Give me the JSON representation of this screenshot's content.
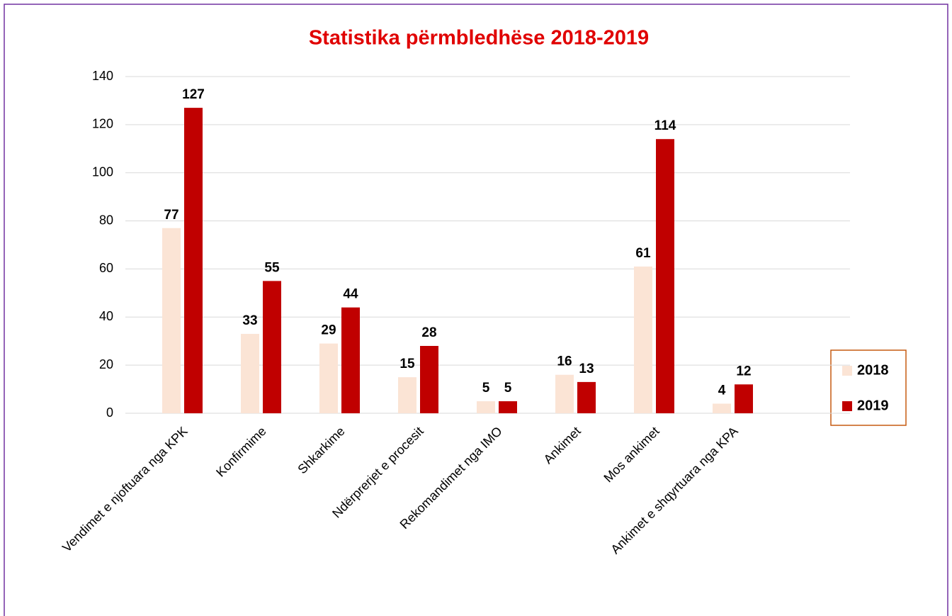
{
  "chart_data": {
    "type": "bar",
    "title": "Statistika përmbledhëse 2018-2019",
    "categories": [
      "Vendimet e njoftuara nga KPK",
      "Konfirmime",
      "Shkarkime",
      "Ndërprerjet e procesit",
      "Rekomandimet nga IMO",
      "Ankimet",
      "Mos ankimet",
      "Ankimet e shqyrtuara nga KPA"
    ],
    "series": [
      {
        "name": "2018",
        "color": "#fbe4d5",
        "values": [
          77,
          33,
          29,
          15,
          5,
          16,
          61,
          4
        ]
      },
      {
        "name": "2019",
        "color": "#c00000",
        "values": [
          127,
          55,
          44,
          28,
          5,
          13,
          114,
          12
        ]
      }
    ],
    "ylim": [
      0,
      140
    ],
    "yticks": [
      0,
      20,
      40,
      60,
      80,
      100,
      120,
      140
    ],
    "grid": true,
    "legend": "right"
  }
}
